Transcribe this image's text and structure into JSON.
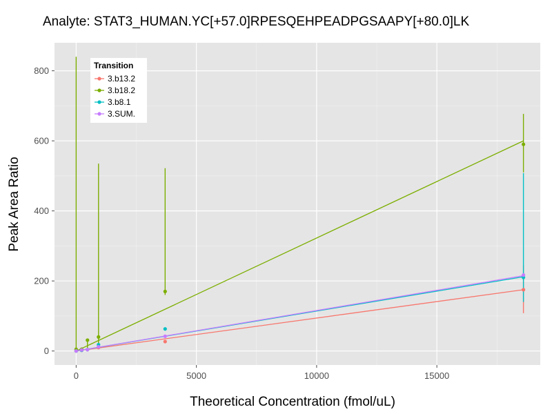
{
  "chart_data": {
    "type": "line",
    "title": "Analyte: STAT3_HUMAN.YC[+57.0]RPESQEHPEADPGSAAPY[+80.0]LK",
    "xlabel": "Theoretical Concentration (fmol/uL)",
    "ylabel": "Peak Area Ratio",
    "xlim": [
      -900,
      19300
    ],
    "ylim": [
      -40,
      880
    ],
    "x_ticks": [
      0,
      5000,
      10000,
      15000
    ],
    "y_ticks": [
      0,
      200,
      400,
      600,
      800
    ],
    "grid": true,
    "legend": {
      "title": "Transition",
      "position": "top-left"
    },
    "series": [
      {
        "name": "3.b13.2",
        "color": "#F8766D",
        "points": [
          {
            "x": 0,
            "y": 0
          },
          {
            "x": 230,
            "y": 2
          },
          {
            "x": 470,
            "y": 4
          },
          {
            "x": 930,
            "y": 10
          },
          {
            "x": 3700,
            "y": 27
          },
          {
            "x": 18600,
            "y": 175
          }
        ],
        "error_bars": [
          {
            "x": 18600,
            "low": 108,
            "high": 245
          }
        ],
        "fit": [
          {
            "x": 0,
            "y": 0
          },
          {
            "x": 18600,
            "y": 175
          }
        ]
      },
      {
        "name": "3.b18.2",
        "color": "#7CAE00",
        "points": [
          {
            "x": 0,
            "y": 5
          },
          {
            "x": 230,
            "y": 5
          },
          {
            "x": 470,
            "y": 31
          },
          {
            "x": 930,
            "y": 40
          },
          {
            "x": 3700,
            "y": 170
          },
          {
            "x": 18600,
            "y": 590
          }
        ],
        "error_bars": [
          {
            "x": 0,
            "low": 0,
            "high": 840
          },
          {
            "x": 470,
            "low": 0,
            "high": 32
          },
          {
            "x": 930,
            "low": 15,
            "high": 535
          },
          {
            "x": 3700,
            "low": 160,
            "high": 522
          },
          {
            "x": 18600,
            "low": 510,
            "high": 677
          }
        ],
        "fit": [
          {
            "x": 0,
            "y": 0
          },
          {
            "x": 18600,
            "y": 600
          }
        ]
      },
      {
        "name": "3.b8.1",
        "color": "#00BFC4",
        "points": [
          {
            "x": 0,
            "y": 0
          },
          {
            "x": 230,
            "y": 2
          },
          {
            "x": 470,
            "y": 4
          },
          {
            "x": 930,
            "y": 18
          },
          {
            "x": 3700,
            "y": 63
          },
          {
            "x": 18600,
            "y": 210
          }
        ],
        "error_bars": [
          {
            "x": 18600,
            "low": 140,
            "high": 508
          }
        ],
        "fit": [
          {
            "x": 0,
            "y": 0
          },
          {
            "x": 18600,
            "y": 212
          }
        ]
      },
      {
        "name": "3.SUM.",
        "color": "#C77CFF",
        "points": [
          {
            "x": 0,
            "y": 0
          },
          {
            "x": 230,
            "y": 3
          },
          {
            "x": 470,
            "y": 4
          },
          {
            "x": 930,
            "y": 12
          },
          {
            "x": 3700,
            "y": 42
          },
          {
            "x": 18600,
            "y": 217
          }
        ],
        "error_bars": [],
        "fit": [
          {
            "x": 0,
            "y": 0
          },
          {
            "x": 18600,
            "y": 215
          }
        ]
      }
    ]
  }
}
